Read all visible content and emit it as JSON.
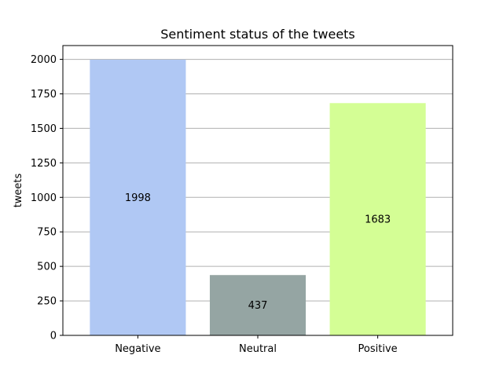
{
  "chart_data": {
    "type": "bar",
    "title": "Sentiment status of the tweets",
    "xlabel": "",
    "ylabel": "tweets",
    "categories": [
      "Negative",
      "Neutral",
      "Positive"
    ],
    "values": [
      1998,
      437,
      1683
    ],
    "data_labels": [
      "1998",
      "437",
      "1683"
    ],
    "colors": [
      "#b0c8f4",
      "#95a5a3",
      "#d4fe95"
    ],
    "ylim": [
      0,
      2100
    ],
    "yticks": [
      0,
      250,
      500,
      750,
      1000,
      1250,
      1500,
      1750,
      2000
    ],
    "grid": "y",
    "legend": "none"
  }
}
